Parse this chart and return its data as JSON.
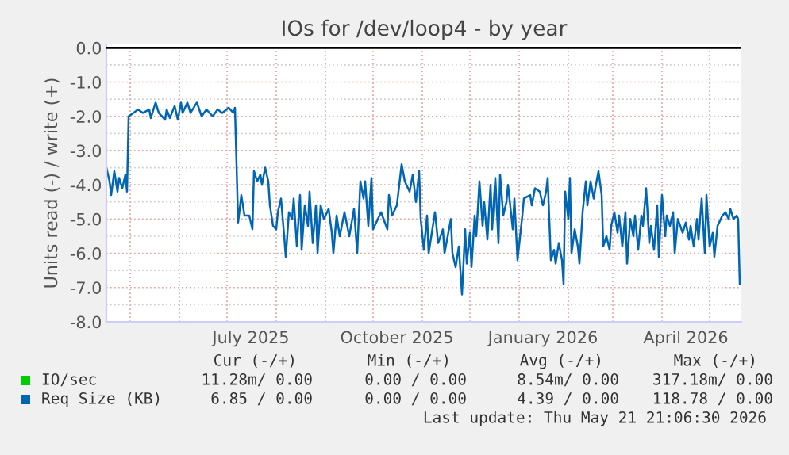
{
  "chart_data": {
    "type": "line",
    "title": "IOs for /dev/loop4 - by year",
    "ylabel": "Units read (-) / write (+)",
    "xlim": [
      "2025-04-16",
      "2026-05-21"
    ],
    "xticks": [
      {
        "value": "2025-05-01",
        "label": null
      },
      {
        "value": "2025-06-01",
        "label": null
      },
      {
        "value": "2025-07-01",
        "label": null
      },
      {
        "value": "2025-07-16",
        "label": "July 2025"
      },
      {
        "value": "2025-08-01",
        "label": null
      },
      {
        "value": "2025-09-01",
        "label": null
      },
      {
        "value": "2025-10-01",
        "label": null
      },
      {
        "value": "2025-10-16",
        "label": "October 2025"
      },
      {
        "value": "2025-11-01",
        "label": null
      },
      {
        "value": "2025-12-01",
        "label": null
      },
      {
        "value": "2026-01-01",
        "label": null
      },
      {
        "value": "2026-01-16",
        "label": "January 2026"
      },
      {
        "value": "2026-02-01",
        "label": null
      },
      {
        "value": "2026-03-01",
        "label": null
      },
      {
        "value": "2026-04-01",
        "label": null
      },
      {
        "value": "2026-04-16",
        "label": "April 2026"
      },
      {
        "value": "2026-05-01",
        "label": null
      }
    ],
    "ylim": [
      -8,
      0.1
    ],
    "yticks": [
      {
        "value": 0,
        "label": "0.0"
      },
      {
        "value": -0.5,
        "label": null
      },
      {
        "value": -1,
        "label": "-1.0"
      },
      {
        "value": -1.5,
        "label": null
      },
      {
        "value": -2,
        "label": "-2.0"
      },
      {
        "value": -2.5,
        "label": null
      },
      {
        "value": -3,
        "label": "-3.0"
      },
      {
        "value": -3.5,
        "label": null
      },
      {
        "value": -4,
        "label": "-4.0"
      },
      {
        "value": -4.5,
        "label": null
      },
      {
        "value": -5,
        "label": "-5.0"
      },
      {
        "value": -5.5,
        "label": null
      },
      {
        "value": -6,
        "label": "-6.0"
      },
      {
        "value": -6.5,
        "label": null
      },
      {
        "value": -7,
        "label": "-7.0"
      },
      {
        "value": -7.5,
        "label": null
      },
      {
        "value": -8,
        "label": "-8.0"
      }
    ],
    "grid": true,
    "legend": "bottom left",
    "ref_lines": [
      {
        "axis": "y",
        "value": 0,
        "color": "#000000"
      }
    ],
    "series": [
      {
        "name": "IO/sec",
        "color": "#00cc00"
      },
      {
        "name": "Req Size (KB)",
        "color": "#0066b3",
        "x": [
          "2025-04-16",
          "2025-04-18",
          "2025-04-19",
          "2025-04-21",
          "2025-04-23",
          "2025-04-24",
          "2025-04-26",
          "2025-04-28",
          "2025-04-29",
          "2025-04-30",
          "2025-05-03",
          "2025-05-06",
          "2025-05-09",
          "2025-05-13",
          "2025-05-14",
          "2025-05-17",
          "2025-05-19",
          "2025-05-23",
          "2025-05-24",
          "2025-05-26",
          "2025-05-29",
          "2025-05-31",
          "2025-06-02",
          "2025-06-03",
          "2025-06-06",
          "2025-06-08",
          "2025-06-12",
          "2025-06-15",
          "2025-06-18",
          "2025-06-22",
          "2025-06-25",
          "2025-06-28",
          "2025-07-02",
          "2025-07-05",
          "2025-07-06",
          "2025-07-08",
          "2025-07-10",
          "2025-07-12",
          "2025-07-15",
          "2025-07-17",
          "2025-07-18",
          "2025-07-20",
          "2025-07-22",
          "2025-07-23",
          "2025-07-25",
          "2025-07-27",
          "2025-07-28",
          "2025-07-30",
          "2025-08-01",
          "2025-08-02",
          "2025-08-04",
          "2025-08-06",
          "2025-08-07",
          "2025-08-09",
          "2025-08-11",
          "2025-08-12",
          "2025-08-14",
          "2025-08-16",
          "2025-08-17",
          "2025-08-19",
          "2025-08-21",
          "2025-08-22",
          "2025-08-24",
          "2025-08-26",
          "2025-08-27",
          "2025-08-29",
          "2025-08-31",
          "2025-09-03",
          "2025-09-05",
          "2025-09-06",
          "2025-09-08",
          "2025-09-10",
          "2025-09-13",
          "2025-09-16",
          "2025-09-19",
          "2025-09-21",
          "2025-09-23",
          "2025-09-25",
          "2025-09-26",
          "2025-09-28",
          "2025-09-30",
          "2025-10-01",
          "2025-10-03",
          "2025-10-06",
          "2025-10-10",
          "2025-10-11",
          "2025-10-13",
          "2025-10-16",
          "2025-10-19",
          "2025-10-21",
          "2025-10-24",
          "2025-10-26",
          "2025-10-28",
          "2025-10-30",
          "2025-10-31",
          "2025-11-02",
          "2025-11-04",
          "2025-11-05",
          "2025-11-07",
          "2025-11-09",
          "2025-11-11",
          "2025-11-14",
          "2025-11-15",
          "2025-11-19",
          "2025-11-20",
          "2025-11-22",
          "2025-11-24",
          "2025-11-26",
          "2025-11-28",
          "2025-11-29",
          "2025-12-01",
          "2025-12-02",
          "2025-12-04",
          "2025-12-05",
          "2025-12-07",
          "2025-12-09",
          "2025-12-10",
          "2025-12-12",
          "2025-12-14",
          "2025-12-15",
          "2025-12-17",
          "2025-12-19",
          "2025-12-20",
          "2025-12-22",
          "2025-12-24",
          "2025-12-25",
          "2025-12-28",
          "2025-12-29",
          "2025-12-31",
          "2026-01-03",
          "2026-01-04",
          "2026-01-08",
          "2026-01-09",
          "2026-01-11",
          "2026-01-14",
          "2026-01-16",
          "2026-01-18",
          "2026-01-19",
          "2026-01-21",
          "2026-01-23",
          "2026-01-24",
          "2026-01-26",
          "2026-01-28",
          "2026-01-29",
          "2026-01-30",
          "2026-02-01",
          "2026-02-02",
          "2026-02-03",
          "2026-02-05",
          "2026-02-07",
          "2026-02-08",
          "2026-02-10",
          "2026-02-12",
          "2026-02-13",
          "2026-02-15",
          "2026-02-17",
          "2026-02-18",
          "2026-02-20",
          "2026-02-22",
          "2026-02-23",
          "2026-02-25",
          "2026-02-27",
          "2026-02-28",
          "2026-03-02",
          "2026-03-04",
          "2026-03-05",
          "2026-03-07",
          "2026-03-09",
          "2026-03-10",
          "2026-03-12",
          "2026-03-14",
          "2026-03-15",
          "2026-03-17",
          "2026-03-19",
          "2026-03-20",
          "2026-03-22",
          "2026-03-24",
          "2026-03-25",
          "2026-03-27",
          "2026-03-29",
          "2026-03-30",
          "2026-04-01",
          "2026-04-03",
          "2026-04-04",
          "2026-04-06",
          "2026-04-08",
          "2026-04-09",
          "2026-04-11",
          "2026-04-14",
          "2026-04-16",
          "2026-04-18",
          "2026-04-19",
          "2026-04-21",
          "2026-04-23",
          "2026-04-24",
          "2026-04-26",
          "2026-04-28",
          "2026-04-29",
          "2026-05-01",
          "2026-05-03",
          "2026-05-04",
          "2026-05-06",
          "2026-05-08",
          "2026-05-09",
          "2026-05-11",
          "2026-05-13",
          "2026-05-14",
          "2026-05-16",
          "2026-05-18",
          "2026-05-19",
          "2026-05-20"
        ],
        "values": [
          -3.5,
          -3.9,
          -4.3,
          -3.6,
          -4.2,
          -3.8,
          -4.1,
          -3.7,
          -4.2,
          -2.0,
          -1.9,
          -1.8,
          -1.9,
          -1.8,
          -2.05,
          -1.6,
          -1.9,
          -2.1,
          -1.8,
          -2.05,
          -1.7,
          -2.1,
          -1.6,
          -1.9,
          -1.6,
          -1.9,
          -1.6,
          -2.0,
          -1.8,
          -2.0,
          -1.8,
          -1.9,
          -1.75,
          -1.9,
          -1.75,
          -5.1,
          -4.3,
          -4.9,
          -4.9,
          -5.3,
          -3.6,
          -3.9,
          -3.7,
          -4.0,
          -3.5,
          -3.9,
          -4.6,
          -5.2,
          -5.3,
          -4.8,
          -4.4,
          -5.5,
          -6.1,
          -4.8,
          -5.0,
          -4.4,
          -5.8,
          -4.3,
          -5.9,
          -4.6,
          -5.2,
          -4.2,
          -5.7,
          -4.6,
          -6.0,
          -4.6,
          -5.0,
          -4.7,
          -5.4,
          -6.0,
          -4.9,
          -5.5,
          -4.8,
          -5.5,
          -4.7,
          -6.0,
          -3.9,
          -4.4,
          -3.9,
          -5.2,
          -3.8,
          -5.3,
          -5.1,
          -4.8,
          -5.3,
          -4.3,
          -4.9,
          -4.6,
          -3.4,
          -3.9,
          -4.2,
          -3.7,
          -4.5,
          -3.6,
          -5.0,
          -5.9,
          -4.9,
          -6.0,
          -5.4,
          -4.8,
          -5.7,
          -5.3,
          -6.0,
          -5.0,
          -6.0,
          -6.4,
          -5.8,
          -7.2,
          -5.3,
          -6.3,
          -5.4,
          -6.4,
          -4.9,
          -5.5,
          -3.9,
          -5.2,
          -4.5,
          -5.6,
          -4.0,
          -5.3,
          -3.8,
          -5.7,
          -3.7,
          -4.9,
          -4.5,
          -4.0,
          -5.3,
          -4.4,
          -6.2,
          -4.9,
          -4.4,
          -4.3,
          -4.6,
          -4.1,
          -4.2,
          -4.6,
          -4.2,
          -3.8,
          -6.2,
          -5.9,
          -6.3,
          -5.7,
          -6.2,
          -6.9,
          -4.2,
          -5.0,
          -3.8,
          -6.0,
          -5.3,
          -5.8,
          -6.3,
          -4.8,
          -3.9,
          -4.6,
          -3.9,
          -4.4,
          -4.1,
          -3.6,
          -4.3,
          -5.8,
          -5.5,
          -5.9,
          -5.2,
          -4.8,
          -5.4,
          -4.9,
          -5.8,
          -4.8,
          -6.3,
          -5.0,
          -5.5,
          -4.9,
          -5.9,
          -4.9,
          -5.2,
          -4.1,
          -5.7,
          -5.2,
          -5.9,
          -4.6,
          -6.1,
          -4.3,
          -5.5,
          -4.9,
          -5.2,
          -4.8,
          -6.0,
          -5.0,
          -5.4,
          -5.1,
          -5.6,
          -5.2,
          -5.8,
          -5.0,
          -5.6,
          -4.4,
          -6.0,
          -4.3,
          -5.8,
          -5.4,
          -6.1,
          -5.2,
          -5.0,
          -4.9,
          -4.8,
          -5.0,
          -4.7,
          -5.0,
          -4.9,
          -5.0,
          -6.9
        ]
      }
    ],
    "annotations": [
      "Cur (-/+)",
      "Min (-/+)",
      "Avg (-/+)",
      "Max (-/+)",
      "11.28m/ 0.00",
      "0.00 / 0.00",
      "8.54m/ 0.00",
      "317.18m/ 0.00",
      "6.85 / 0.00",
      "0.00 / 0.00",
      "4.39 / 0.00",
      "118.78 / 0.00",
      "Last update: Thu May 21 21:06:30 2026"
    ]
  }
}
